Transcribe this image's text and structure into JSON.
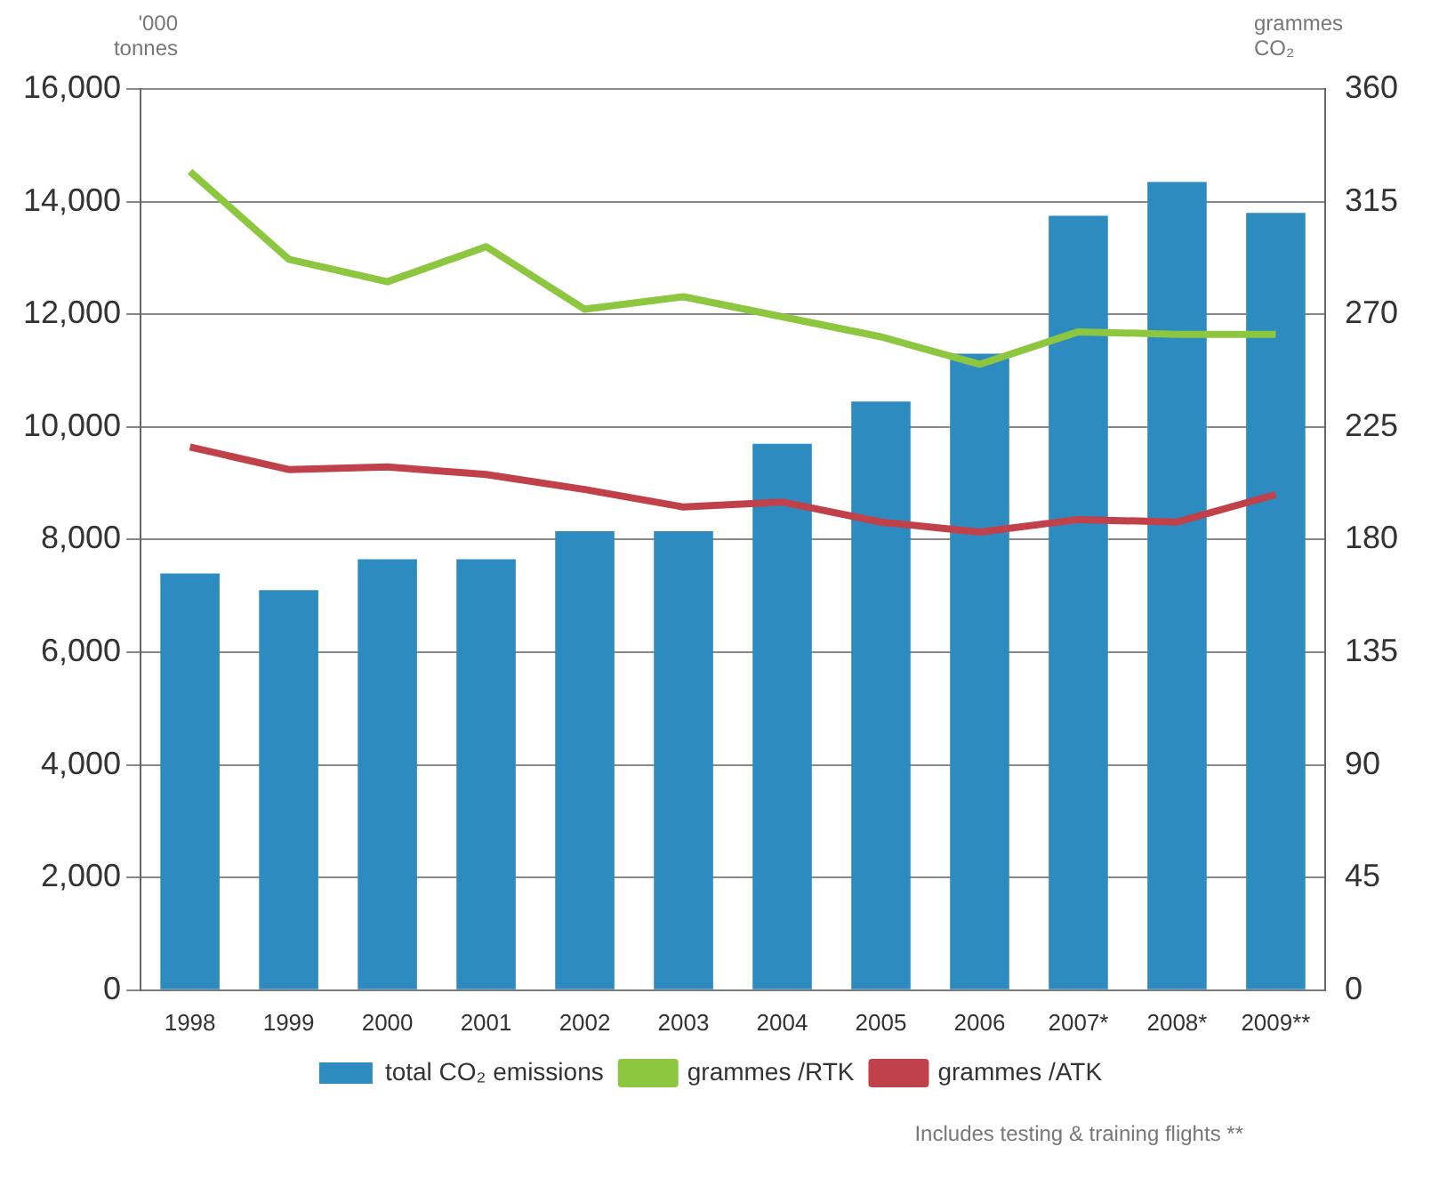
{
  "chart_data": {
    "type": "bar",
    "ylabel": "'000 tonnes",
    "y2label": "grammes CO₂",
    "categories": [
      "1998",
      "1999",
      "2000",
      "2001",
      "2002",
      "2003",
      "2004",
      "2005",
      "2006",
      "2007*",
      "2008*",
      "2009**"
    ],
    "series": [
      {
        "name": "total CO₂ emissions",
        "color": "#2e8bc0",
        "values": [
          7400,
          7100,
          7650,
          7650,
          8150,
          8150,
          9700,
          10450,
          11300,
          13750,
          14350,
          13800
        ]
      },
      {
        "name": "grammes /RTK",
        "type": "line",
        "axis": "y2",
        "color": "#8dc63f",
        "values": [
          327,
          292,
          283,
          297,
          272,
          277,
          269,
          261,
          250,
          263,
          262,
          262
        ]
      },
      {
        "name": "grammes /ATK",
        "type": "line",
        "axis": "y2",
        "color": "#c1414b",
        "values": [
          217,
          208,
          209,
          206,
          200,
          193,
          195,
          187,
          183,
          188,
          187,
          198
        ]
      }
    ],
    "ylim": [
      0,
      16000
    ],
    "yticks": [
      0,
      {
        "value": 2000,
        "label": "2,000"
      },
      {
        "value": 4000,
        "label": "4,000"
      },
      {
        "value": 6000,
        "label": "6,000"
      },
      {
        "value": 8000,
        "label": "8,000"
      },
      {
        "value": 10000,
        "label": "10,000"
      },
      {
        "value": 12000,
        "label": "12,000"
      },
      {
        "value": 14000,
        "label": "14,000"
      },
      {
        "value": 16000,
        "label": "16,000"
      }
    ],
    "y2lim": [
      0,
      360
    ],
    "y2ticks": [
      0,
      45,
      90,
      135,
      180,
      225,
      270,
      315,
      360
    ],
    "grid": "y",
    "legend": "bottom",
    "marker": "none",
    "annotations": [
      "Includes testing & training flights **"
    ]
  }
}
